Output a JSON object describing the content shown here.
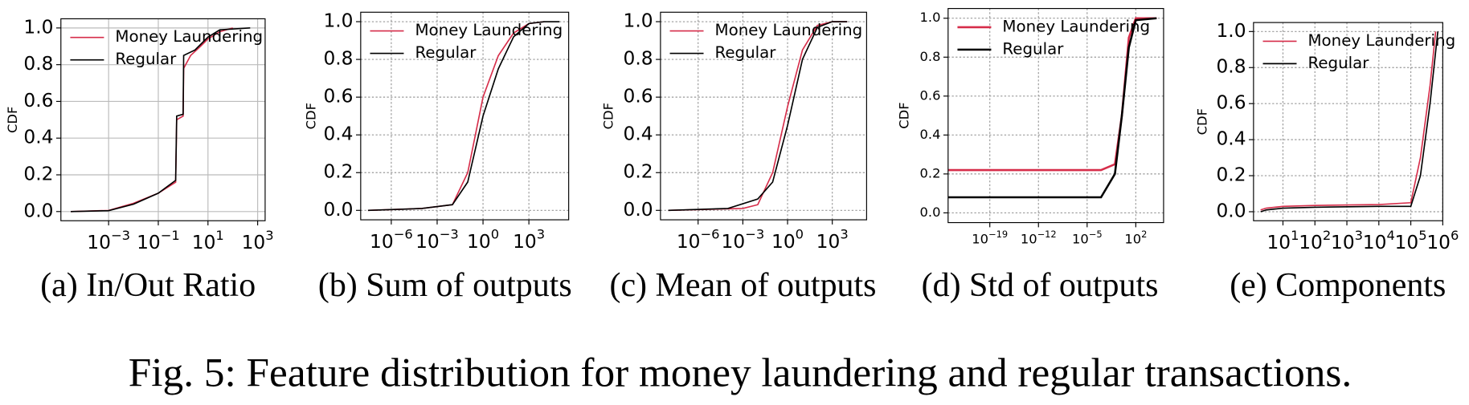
{
  "chart_data": [
    {
      "type": "line",
      "subcaption": "(a) In/Out Ratio",
      "ylabel": "CDF",
      "xscale": "log",
      "grid": true,
      "grid_style": "solid",
      "legend": "upper left",
      "xlim": [
        1.2e-05,
        2000
      ],
      "ylim": [
        -0.05,
        1.05
      ],
      "xticks": [
        {
          "value": 0.001,
          "label": "10−3"
        },
        {
          "value": 0.1,
          "label": "10−1"
        },
        {
          "value": 10,
          "label": "101"
        },
        {
          "value": 1000,
          "label": "103"
        }
      ],
      "yticks": [
        {
          "value": 0,
          "label": "0.0"
        },
        {
          "value": 0.2,
          "label": "0.2"
        },
        {
          "value": 0.4,
          "label": "0.4"
        },
        {
          "value": 0.6,
          "label": "0.6"
        },
        {
          "value": 0.8,
          "label": "0.8"
        },
        {
          "value": 1,
          "label": "1.0"
        }
      ],
      "series": [
        {
          "name": "Money Laundering",
          "color": "#d62d4a",
          "x": [
            3e-05,
            0.001,
            0.01,
            0.1,
            0.5,
            0.55,
            1,
            1.05,
            2,
            5,
            10,
            30,
            100
          ],
          "values": [
            0,
            0.006,
            0.045,
            0.1,
            0.16,
            0.5,
            0.52,
            0.78,
            0.85,
            0.9,
            0.94,
            0.98,
            1
          ]
        },
        {
          "name": "Regular",
          "color": "#000000",
          "x": [
            3e-05,
            0.001,
            0.01,
            0.1,
            0.5,
            0.55,
            1,
            1.05,
            3,
            10,
            30,
            500
          ],
          "values": [
            0,
            0.005,
            0.04,
            0.1,
            0.17,
            0.52,
            0.53,
            0.85,
            0.88,
            0.95,
            0.99,
            1
          ]
        }
      ]
    },
    {
      "type": "line",
      "subcaption": "(b) Sum of outputs",
      "ylabel": "CDF",
      "xscale": "log",
      "grid": true,
      "grid_style": "dotted",
      "legend": "upper left",
      "xlim": [
        1e-08,
        400000
      ],
      "ylim": [
        -0.05,
        1.05
      ],
      "xticks": [
        {
          "value": 1e-06,
          "label": "10−6"
        },
        {
          "value": 0.001,
          "label": "10−3"
        },
        {
          "value": 1,
          "label": "100"
        },
        {
          "value": 1000,
          "label": "103"
        }
      ],
      "yticks": [
        {
          "value": 0,
          "label": "0.0"
        },
        {
          "value": 0.2,
          "label": "0.2"
        },
        {
          "value": 0.4,
          "label": "0.4"
        },
        {
          "value": 0.6,
          "label": "0.6"
        },
        {
          "value": 0.8,
          "label": "0.8"
        },
        {
          "value": 1,
          "label": "1.0"
        }
      ],
      "series": [
        {
          "name": "Money Laundering",
          "color": "#d62d4a",
          "x": [
            3e-08,
            0.0001,
            0.01,
            0.1,
            1,
            10,
            100,
            1000,
            10000
          ],
          "values": [
            0,
            0.01,
            0.03,
            0.2,
            0.6,
            0.82,
            0.94,
            0.99,
            1
          ]
        },
        {
          "name": "Regular",
          "color": "#000000",
          "x": [
            3e-08,
            0.0001,
            0.01,
            0.1,
            1,
            10,
            100,
            1000,
            10000,
            100000
          ],
          "values": [
            0,
            0.01,
            0.03,
            0.15,
            0.5,
            0.75,
            0.92,
            0.99,
            1,
            1
          ]
        }
      ]
    },
    {
      "type": "line",
      "subcaption": "(c) Mean of outputs",
      "ylabel": "CDF",
      "xscale": "log",
      "grid": true,
      "grid_style": "dotted",
      "legend": "upper left",
      "xlim": [
        3e-09,
        200000
      ],
      "ylim": [
        -0.05,
        1.05
      ],
      "xticks": [
        {
          "value": 1e-06,
          "label": "10−6"
        },
        {
          "value": 0.001,
          "label": "10−3"
        },
        {
          "value": 1,
          "label": "100"
        },
        {
          "value": 1000,
          "label": "103"
        }
      ],
      "yticks": [
        {
          "value": 0,
          "label": "0.0"
        },
        {
          "value": 0.2,
          "label": "0.2"
        },
        {
          "value": 0.4,
          "label": "0.4"
        },
        {
          "value": 0.6,
          "label": "0.6"
        },
        {
          "value": 0.8,
          "label": "0.8"
        },
        {
          "value": 1,
          "label": "1.0"
        }
      ],
      "series": [
        {
          "name": "Money Laundering",
          "color": "#d62d4a",
          "x": [
            1e-08,
            0.001,
            0.01,
            0.1,
            1,
            10,
            100,
            1000,
            10000
          ],
          "values": [
            0,
            0.01,
            0.03,
            0.2,
            0.55,
            0.85,
            0.98,
            1,
            1
          ]
        },
        {
          "name": "Regular",
          "color": "#000000",
          "x": [
            1e-08,
            0.0001,
            0.01,
            0.1,
            1,
            10,
            100,
            1000,
            10000
          ],
          "values": [
            0,
            0.01,
            0.06,
            0.15,
            0.45,
            0.8,
            0.97,
            1,
            1
          ]
        }
      ]
    },
    {
      "type": "line",
      "subcaption": "(d) Std of outputs",
      "ylabel": "CDF",
      "xscale": "log",
      "grid": true,
      "grid_style": "dotted",
      "legend": "upper left",
      "xlim": [
        1e-25,
        1000000
      ],
      "ylim": [
        -0.05,
        1.05
      ],
      "xticks": [
        {
          "value": 1e-19,
          "label": "10−19"
        },
        {
          "value": 1e-12,
          "label": "10−12"
        },
        {
          "value": 1e-05,
          "label": "10−5"
        },
        {
          "value": 100,
          "label": "102"
        }
      ],
      "yticks": [
        {
          "value": 0,
          "label": "0.0"
        },
        {
          "value": 0.2,
          "label": "0.2"
        },
        {
          "value": 0.4,
          "label": "0.4"
        },
        {
          "value": 0.6,
          "label": "0.6"
        },
        {
          "value": 0.8,
          "label": "0.8"
        },
        {
          "value": 1,
          "label": "1.0"
        }
      ],
      "series": [
        {
          "name": "Money Laundering",
          "color": "#d62d4a",
          "x": [
            1e-25,
            0.001,
            0.1,
            1,
            10,
            100,
            100000
          ],
          "values": [
            0.22,
            0.22,
            0.25,
            0.5,
            0.9,
            1,
            1
          ]
        },
        {
          "name": "Regular",
          "color": "#000000",
          "x": [
            1e-25,
            0.001,
            0.1,
            1,
            10,
            100,
            100000
          ],
          "values": [
            0.08,
            0.08,
            0.2,
            0.5,
            0.85,
            0.99,
            1
          ]
        }
      ]
    },
    {
      "type": "line",
      "subcaption": "(e) Components",
      "ylabel": "CDF",
      "xscale": "log",
      "grid": true,
      "grid_style": "dotted",
      "legend": "upper left",
      "xlim": [
        1.2,
        1000000
      ],
      "ylim": [
        -0.05,
        1.05
      ],
      "xticks": [
        {
          "value": 10,
          "label": "101"
        },
        {
          "value": 100,
          "label": "102"
        },
        {
          "value": 1000,
          "label": "103"
        },
        {
          "value": 10000,
          "label": "104"
        },
        {
          "value": 100000,
          "label": "105"
        },
        {
          "value": 1000000,
          "label": "106"
        }
      ],
      "yticks": [
        {
          "value": 0,
          "label": "0.0"
        },
        {
          "value": 0.2,
          "label": "0.2"
        },
        {
          "value": 0.4,
          "label": "0.4"
        },
        {
          "value": 0.6,
          "label": "0.6"
        },
        {
          "value": 0.8,
          "label": "0.8"
        },
        {
          "value": 1,
          "label": "1.0"
        }
      ],
      "series": [
        {
          "name": "Money Laundering",
          "color": "#d62d4a",
          "x": [
            2,
            3,
            10,
            100,
            10000,
            100000,
            200000,
            400000,
            600000
          ],
          "values": [
            0.01,
            0.02,
            0.03,
            0.035,
            0.04,
            0.05,
            0.3,
            0.7,
            1
          ]
        },
        {
          "name": "Regular",
          "color": "#000000",
          "x": [
            2,
            3,
            10,
            100,
            10000,
            100000,
            200000,
            400000,
            700000
          ],
          "values": [
            0,
            0.01,
            0.02,
            0.025,
            0.03,
            0.03,
            0.2,
            0.6,
            1
          ]
        }
      ]
    }
  ],
  "caption": "Fig. 5: Feature distribution for money laundering and regular transactions."
}
